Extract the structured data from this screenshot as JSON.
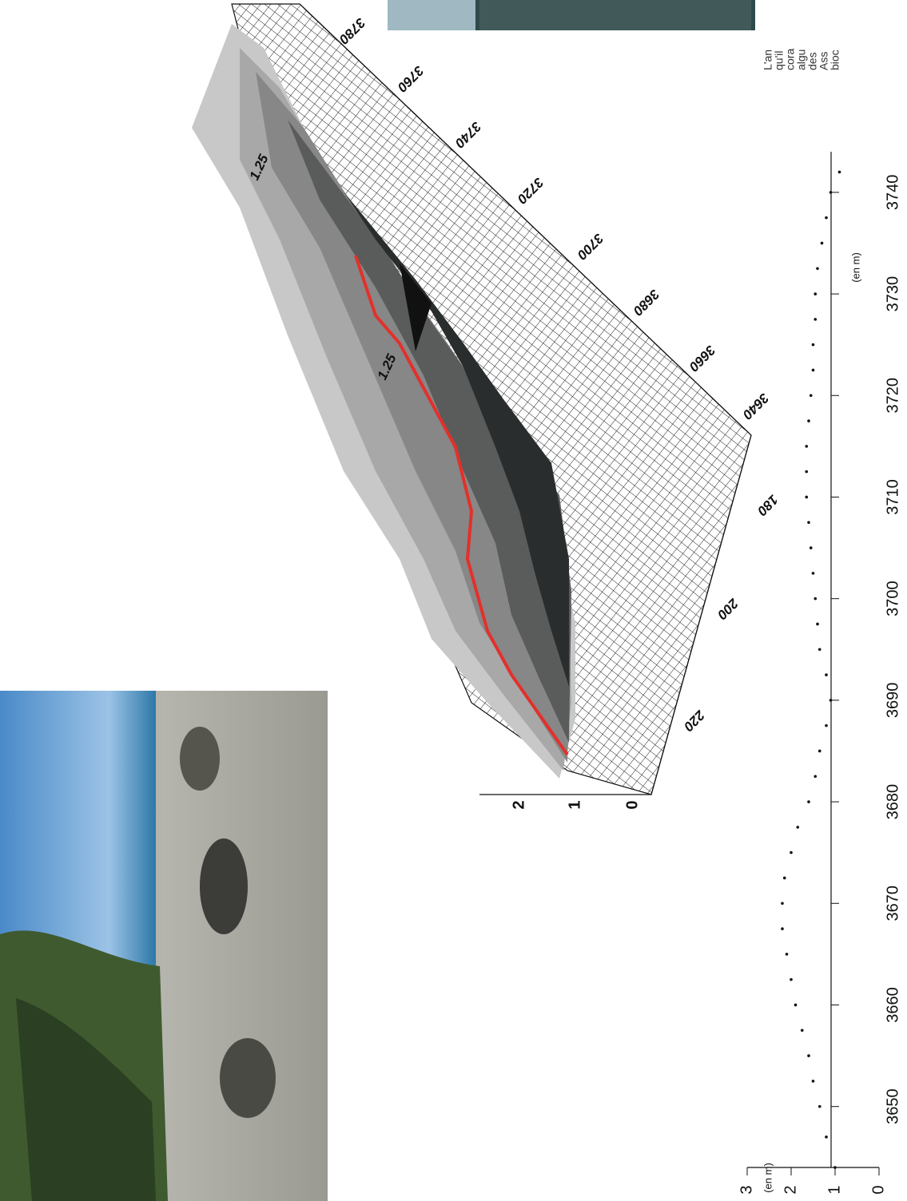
{
  "chart_data": {
    "type": "scatter",
    "x_label": "(en m)",
    "y_label": "(en m)",
    "x": [
      3644,
      3647,
      3650,
      3652.5,
      3655,
      3657.5,
      3660,
      3662.5,
      3665,
      3667.5,
      3670,
      3672.5,
      3675,
      3677.5,
      3680,
      3682.5,
      3685,
      3687.5,
      3690,
      3692.5,
      3695,
      3697.5,
      3700,
      3702.5,
      3705,
      3707.5,
      3710,
      3712.5,
      3715,
      3717.5,
      3720,
      3722.5,
      3725,
      3727.5,
      3730,
      3732.5,
      3735,
      3737.5,
      3740,
      3742
    ],
    "values": [
      1.0,
      1.2,
      1.35,
      1.5,
      1.6,
      1.75,
      1.9,
      2.0,
      2.1,
      2.2,
      2.2,
      2.15,
      2.0,
      1.85,
      1.6,
      1.45,
      1.35,
      1.2,
      1.1,
      1.2,
      1.35,
      1.4,
      1.45,
      1.5,
      1.55,
      1.6,
      1.65,
      1.65,
      1.65,
      1.6,
      1.55,
      1.5,
      1.5,
      1.45,
      1.45,
      1.4,
      1.3,
      1.2,
      1.1,
      0.9
    ],
    "xlim": [
      3644,
      3744
    ],
    "xticks": [
      3650,
      3660,
      3670,
      3680,
      3690,
      3700,
      3710,
      3720,
      3730,
      3740
    ],
    "ylim": [
      0,
      3
    ],
    "yticks": [
      0,
      1,
      2,
      3
    ],
    "color": "#111111"
  },
  "surface_plot": {
    "x_axis_labels": [
      3640,
      3660,
      3680,
      3700,
      3720,
      3740,
      3760,
      3780
    ],
    "y_axis_labels": [
      180,
      200,
      220
    ],
    "z_axis_labels": [
      0,
      1,
      2
    ],
    "contour_labels": [
      "1.25",
      "1.25"
    ]
  },
  "side_text": [
    "L'an",
    "qu'il",
    "cora",
    "algu",
    "des",
    "Ass",
    "bioc"
  ]
}
